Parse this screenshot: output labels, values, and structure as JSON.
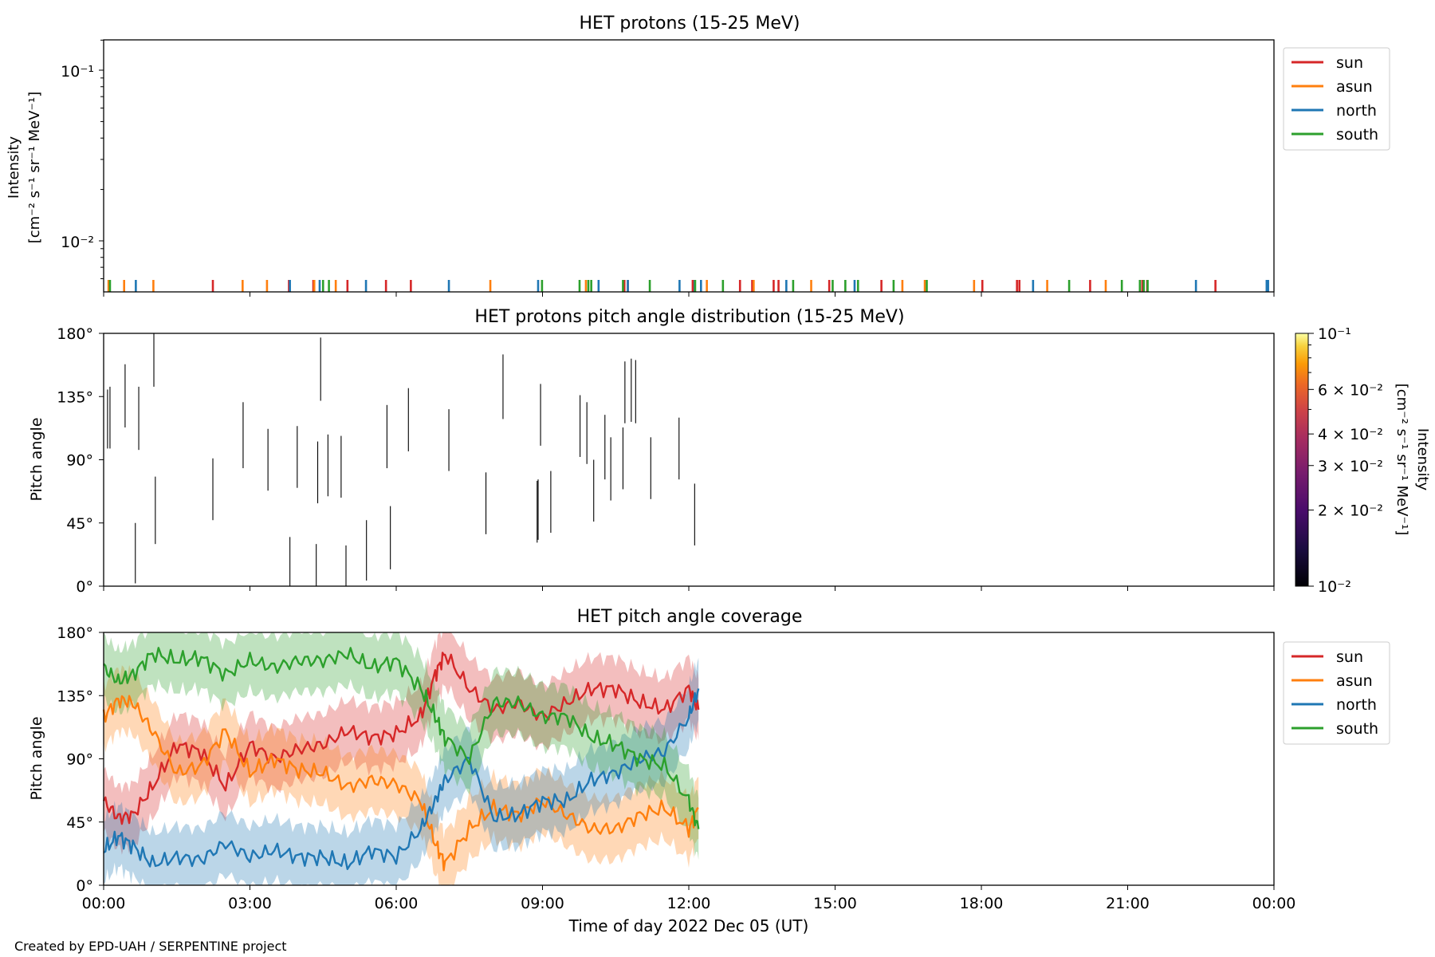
{
  "footer": "Created by EPD-UAH / SERPENTINE project",
  "x_axis": {
    "ticks": [
      "00:00",
      "03:00",
      "06:00",
      "09:00",
      "12:00",
      "15:00",
      "18:00",
      "21:00",
      "00:00"
    ],
    "range_hours": [
      0,
      24
    ],
    "label": "Time of day 2022 Dec 05 (UT)"
  },
  "panels": {
    "protons": {
      "title": "HET protons (15-25 MeV)",
      "ylabel_line1": "Intensity",
      "ylabel_line2": "[cm⁻² s⁻¹ sr⁻¹ MeV⁻¹]",
      "ytick_high": "10⁻¹",
      "ytick_low": "10⁻²",
      "legend": [
        "sun",
        "asun",
        "north",
        "south"
      ]
    },
    "pad": {
      "title": "HET protons pitch angle distribution (15-25 MeV)",
      "ylabel": "Pitch angle",
      "yticks": [
        "0°",
        "45°",
        "90°",
        "135°",
        "180°"
      ],
      "colorbar": {
        "label_line1": "Intensity",
        "label_line2": "[cm⁻² s⁻¹ sr⁻¹ MeV⁻¹]",
        "ticks": [
          "10⁻¹",
          "6 × 10⁻²",
          "4 × 10⁻²",
          "3 × 10⁻²",
          "2 × 10⁻²",
          "10⁻²"
        ],
        "tick_values": [
          0.1,
          0.06,
          0.04,
          0.03,
          0.02,
          0.01
        ],
        "colormap": "inferno"
      }
    },
    "coverage": {
      "title": "HET pitch angle coverage",
      "ylabel": "Pitch angle",
      "yticks": [
        "0°",
        "45°",
        "90°",
        "135°",
        "180°"
      ],
      "legend": [
        "sun",
        "asun",
        "north",
        "south"
      ]
    }
  },
  "colors": {
    "sun": "#d62728",
    "asun": "#ff7f0e",
    "north": "#1f77b4",
    "south": "#2ca02c"
  },
  "chart_data": [
    {
      "type": "scatter",
      "title": "HET protons (15-25 MeV)",
      "yscale": "log",
      "ylim": [
        0.0048,
        0.16
      ],
      "xlim_hours": [
        0,
        24
      ],
      "note_series": "isolated single-count spikes at the bottom of the log axis",
      "series": [
        {
          "name": "sun",
          "x_hours": [
            0.12,
            2.24,
            3.8,
            4.3,
            5.0,
            5.79,
            6.3,
            10.68,
            10.75,
            12.08,
            13.05,
            13.3,
            13.74,
            13.84,
            14.88,
            15.95,
            18.02,
            18.73,
            18.78,
            20.23,
            21.3,
            21.4,
            22.8
          ]
        },
        {
          "name": "asun",
          "x_hours": [
            0.1,
            0.42,
            1.02,
            2.85,
            3.35,
            4.32,
            4.76,
            7.93,
            9.89,
            12.37,
            13.33,
            14.51,
            16.38,
            16.84,
            17.85,
            19.35,
            20.55
          ]
        },
        {
          "name": "north",
          "x_hours": [
            0.66,
            3.82,
            4.43,
            5.38,
            7.08,
            8.91,
            10.15,
            10.75,
            11.81,
            12.25,
            12.12,
            14.0,
            15.4,
            19.06,
            22.4,
            23.85,
            23.88
          ]
        },
        {
          "name": "south",
          "x_hours": [
            0.13,
            4.5,
            4.62,
            8.99,
            9.76,
            9.94,
            10.0,
            10.65,
            11.2,
            12.13,
            12.7,
            14.14,
            14.95,
            15.21,
            15.47,
            16.2,
            16.88,
            19.8,
            20.88,
            21.25,
            21.33,
            21.41
          ]
        }
      ]
    },
    {
      "type": "heatmap",
      "title": "HET protons pitch angle distribution (15-25 MeV)",
      "ylabel": "Pitch angle",
      "ylim": [
        0,
        180
      ],
      "colorbar_range": [
        0.01,
        0.1
      ],
      "colorbar_scale": "log",
      "xlim_hours": [
        0,
        24
      ],
      "cells": [
        {
          "x": 0.08,
          "y0": 98,
          "y1": 140
        },
        {
          "x": 0.13,
          "y0": 98,
          "y1": 142
        },
        {
          "x": 0.44,
          "y0": 113,
          "y1": 158
        },
        {
          "x": 0.65,
          "y0": 2,
          "y1": 45
        },
        {
          "x": 0.72,
          "y0": 97,
          "y1": 142
        },
        {
          "x": 1.03,
          "y0": 142,
          "y1": 180
        },
        {
          "x": 1.06,
          "y0": 30,
          "y1": 78
        },
        {
          "x": 2.24,
          "y0": 47,
          "y1": 91
        },
        {
          "x": 2.86,
          "y0": 84,
          "y1": 131
        },
        {
          "x": 3.37,
          "y0": 68,
          "y1": 112
        },
        {
          "x": 3.82,
          "y0": 0,
          "y1": 35
        },
        {
          "x": 3.97,
          "y0": 70,
          "y1": 114
        },
        {
          "x": 4.36,
          "y0": 0,
          "y1": 30
        },
        {
          "x": 4.39,
          "y0": 59,
          "y1": 103
        },
        {
          "x": 4.45,
          "y0": 132,
          "y1": 177
        },
        {
          "x": 4.6,
          "y0": 64,
          "y1": 108
        },
        {
          "x": 4.87,
          "y0": 63,
          "y1": 107
        },
        {
          "x": 4.97,
          "y0": 0,
          "y1": 29
        },
        {
          "x": 5.39,
          "y0": 4,
          "y1": 47
        },
        {
          "x": 5.81,
          "y0": 84,
          "y1": 129
        },
        {
          "x": 5.88,
          "y0": 12,
          "y1": 57
        },
        {
          "x": 6.25,
          "y0": 96,
          "y1": 141
        },
        {
          "x": 7.08,
          "y0": 82,
          "y1": 126
        },
        {
          "x": 7.84,
          "y0": 37,
          "y1": 81
        },
        {
          "x": 8.19,
          "y0": 119,
          "y1": 165
        },
        {
          "x": 8.89,
          "y0": 31,
          "y1": 75
        },
        {
          "x": 8.91,
          "y0": 33,
          "y1": 76
        },
        {
          "x": 8.96,
          "y0": 100,
          "y1": 144
        },
        {
          "x": 9.17,
          "y0": 38,
          "y1": 82
        },
        {
          "x": 9.77,
          "y0": 92,
          "y1": 136
        },
        {
          "x": 9.91,
          "y0": 87,
          "y1": 131
        },
        {
          "x": 10.05,
          "y0": 46,
          "y1": 90
        },
        {
          "x": 10.28,
          "y0": 76,
          "y1": 122
        },
        {
          "x": 10.4,
          "y0": 61,
          "y1": 106
        },
        {
          "x": 10.65,
          "y0": 69,
          "y1": 113
        },
        {
          "x": 10.69,
          "y0": 116,
          "y1": 160
        },
        {
          "x": 10.82,
          "y0": 117,
          "y1": 162
        },
        {
          "x": 10.91,
          "y0": 116,
          "y1": 161
        },
        {
          "x": 11.22,
          "y0": 62,
          "y1": 106
        },
        {
          "x": 11.8,
          "y0": 76,
          "y1": 120
        },
        {
          "x": 12.12,
          "y0": 29,
          "y1": 73
        }
      ]
    },
    {
      "type": "line",
      "title": "HET pitch angle coverage",
      "ylabel": "Pitch angle",
      "xlabel": "Time of day 2022 Dec 05 (UT)",
      "ylim": [
        0,
        180
      ],
      "xlim_hours": [
        0,
        24
      ],
      "shaded_band_half_width_deg": 22,
      "series": [
        {
          "name": "sun",
          "x_hours": [
            0,
            0.3,
            0.6,
            1.0,
            1.5,
            2.0,
            2.5,
            3.0,
            3.5,
            4.0,
            4.5,
            5.0,
            5.5,
            6.0,
            6.5,
            6.8,
            7.0,
            7.5,
            8.0,
            8.5,
            9.0,
            9.5,
            10.0,
            10.5,
            11.0,
            11.5,
            12.0,
            12.2
          ],
          "values": [
            60,
            48,
            50,
            70,
            100,
            95,
            70,
            100,
            90,
            97,
            100,
            110,
            105,
            108,
            120,
            150,
            165,
            140,
            125,
            130,
            120,
            130,
            140,
            140,
            130,
            125,
            140,
            125
          ]
        },
        {
          "name": "asun",
          "x_hours": [
            0,
            0.3,
            0.6,
            1.0,
            1.5,
            2.0,
            2.5,
            3.0,
            3.5,
            4.0,
            4.5,
            5.0,
            5.5,
            6.0,
            6.5,
            6.8,
            7.0,
            7.5,
            8.0,
            8.5,
            9.0,
            9.5,
            10.0,
            10.5,
            11.0,
            11.5,
            12.0,
            12.2
          ],
          "values": [
            120,
            132,
            130,
            110,
            80,
            85,
            110,
            80,
            90,
            82,
            80,
            70,
            75,
            72,
            60,
            30,
            15,
            40,
            55,
            50,
            60,
            50,
            40,
            40,
            50,
            55,
            40,
            55
          ]
        },
        {
          "name": "north",
          "x_hours": [
            0,
            0.3,
            0.6,
            1.0,
            1.5,
            2.0,
            2.5,
            3.0,
            3.5,
            4.0,
            4.5,
            5.0,
            5.5,
            6.0,
            6.5,
            6.8,
            7.0,
            7.5,
            8.0,
            8.5,
            9.0,
            9.5,
            10.0,
            10.5,
            11.0,
            11.5,
            12.0,
            12.2
          ],
          "values": [
            25,
            35,
            28,
            15,
            20,
            18,
            30,
            20,
            25,
            20,
            20,
            15,
            25,
            20,
            40,
            60,
            75,
            90,
            48,
            50,
            60,
            60,
            75,
            80,
            90,
            95,
            120,
            140
          ]
        },
        {
          "name": "south",
          "x_hours": [
            0,
            0.3,
            0.6,
            1.0,
            1.5,
            2.0,
            2.5,
            3.0,
            3.5,
            4.0,
            4.5,
            5.0,
            5.5,
            6.0,
            6.5,
            6.8,
            7.0,
            7.5,
            8.0,
            8.5,
            9.0,
            9.5,
            10.0,
            10.5,
            11.0,
            11.5,
            12.0,
            12.2
          ],
          "values": [
            155,
            145,
            150,
            165,
            160,
            162,
            150,
            160,
            155,
            160,
            160,
            165,
            155,
            160,
            140,
            120,
            105,
            90,
            130,
            130,
            120,
            120,
            105,
            100,
            90,
            85,
            60,
            40
          ]
        }
      ]
    }
  ]
}
